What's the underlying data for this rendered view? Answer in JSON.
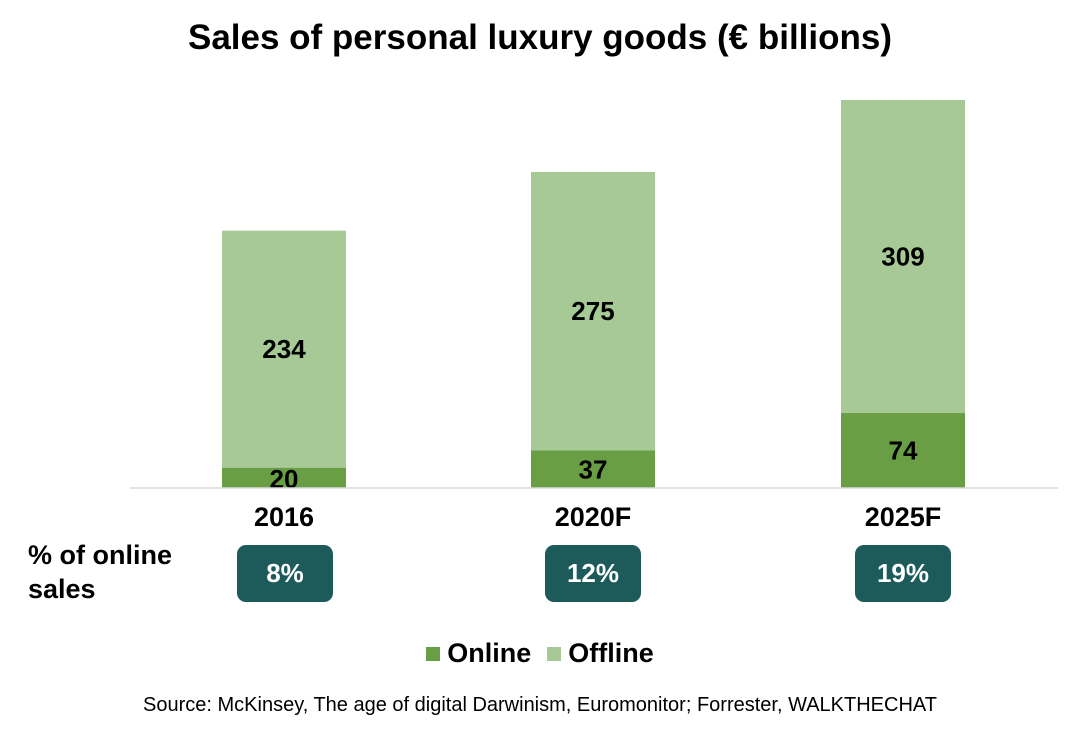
{
  "title": "Sales of personal luxury goods (€ billions)",
  "chart_data": {
    "type": "bar",
    "stacked": true,
    "title": "Sales of personal luxury goods (€ billions)",
    "categories": [
      "2016",
      "2020F",
      "2025F"
    ],
    "series": [
      {
        "name": "Online",
        "values": [
          20,
          37,
          74
        ]
      },
      {
        "name": "Offline",
        "values": [
          234,
          275,
          309
        ]
      }
    ],
    "xlabel": "",
    "ylabel": "€ billions",
    "ylim": [
      0,
      383
    ],
    "grid": false,
    "legend": "bottom-center"
  },
  "colors": {
    "online": "#6a9e44",
    "offline": "#a6c995",
    "badge": "#1d5a5a",
    "axis": "#d9d9d9"
  },
  "percent_row": {
    "label": "% of online sales",
    "values": [
      "8%",
      "12%",
      "19%"
    ]
  },
  "legend": {
    "online": "Online",
    "offline": "Offline"
  },
  "source": "Source: McKinsey, The age of digital Darwinism, Euromonitor; Forrester, WALKTHECHAT"
}
